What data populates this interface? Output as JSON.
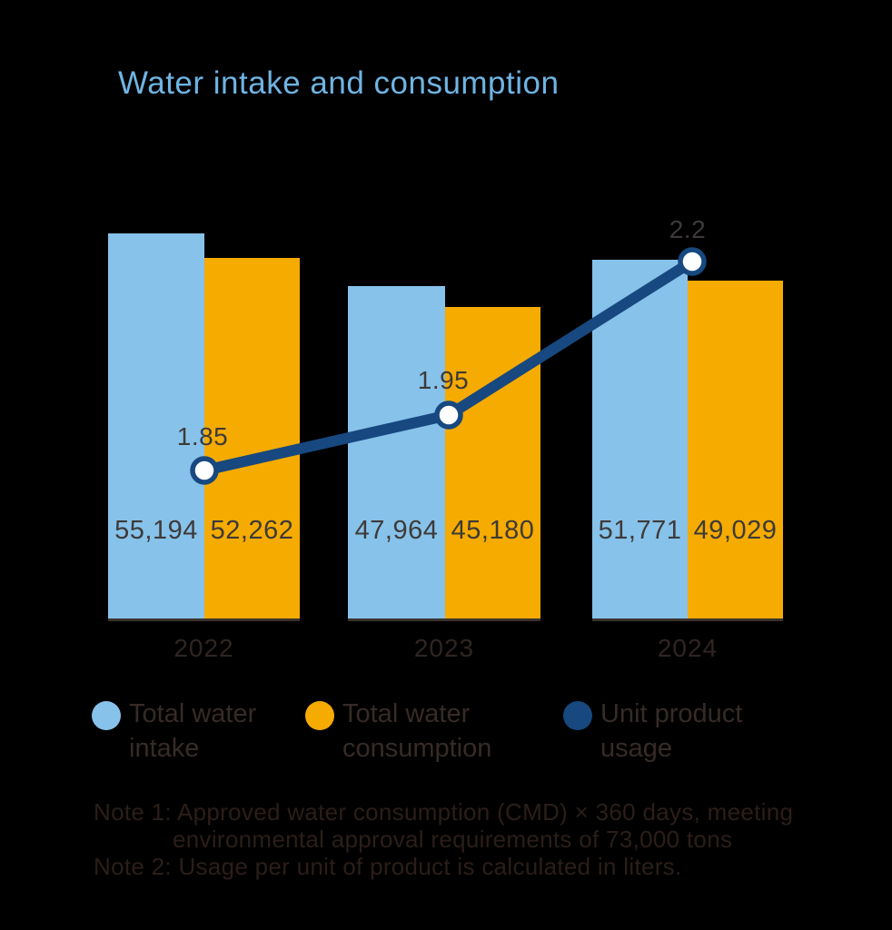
{
  "title": "Water intake and consumption",
  "colors": {
    "background": "#000000",
    "title": "#6FB4E3",
    "bar_intake": "#87C2EA",
    "bar_consumption": "#F5AB00",
    "line": "#17487F",
    "marker_fill": "#FFFFFF",
    "value_text": "#3E3A39",
    "year_text": "#2F2522",
    "legend_text": "#362B27",
    "note_text": "#2B1E19",
    "baseline": "#3A322E"
  },
  "chart_data": {
    "type": "combo",
    "title": "Water intake and consumption",
    "categories": [
      "2022",
      "2023",
      "2024"
    ],
    "series": [
      {
        "name": "Total water intake",
        "chart_type": "bar",
        "color": "#87C2EA",
        "values": [
          55194,
          47964,
          51771
        ],
        "value_labels": [
          "55,194",
          "47,964",
          "51,771"
        ]
      },
      {
        "name": "Total water consumption",
        "chart_type": "bar",
        "color": "#F5AB00",
        "values": [
          52262,
          45180,
          49029
        ],
        "value_labels": [
          "52,262",
          "45,180",
          "49,029"
        ]
      },
      {
        "name": "Unit product usage",
        "chart_type": "line",
        "color": "#17487F",
        "marker": "white-circle-navy-ring",
        "values": [
          1.85,
          1.95,
          2.2
        ],
        "value_labels": [
          "1.85",
          "1.95",
          "2.2"
        ]
      }
    ],
    "xlabel": "",
    "ylabel": "",
    "grid": false,
    "axes_visible": false,
    "legend_position": "bottom"
  },
  "legend": {
    "items": [
      {
        "label": "Total water intake",
        "line1": "Total water",
        "line2": "intake",
        "color": "#87C2EA"
      },
      {
        "label": "Total water consumption",
        "line1": "Total water",
        "line2": "consumption",
        "color": "#F5AB00"
      },
      {
        "label": "Unit product usage",
        "line1": "Unit product",
        "line2": "usage",
        "color": "#17487F"
      }
    ]
  },
  "notes": {
    "line1": "Note 1: Approved water consumption (CMD) × 360 days, meeting",
    "line2": "environmental approval requirements of 73,000 tons",
    "line3": "Note 2: Usage per unit of product is calculated in liters."
  }
}
